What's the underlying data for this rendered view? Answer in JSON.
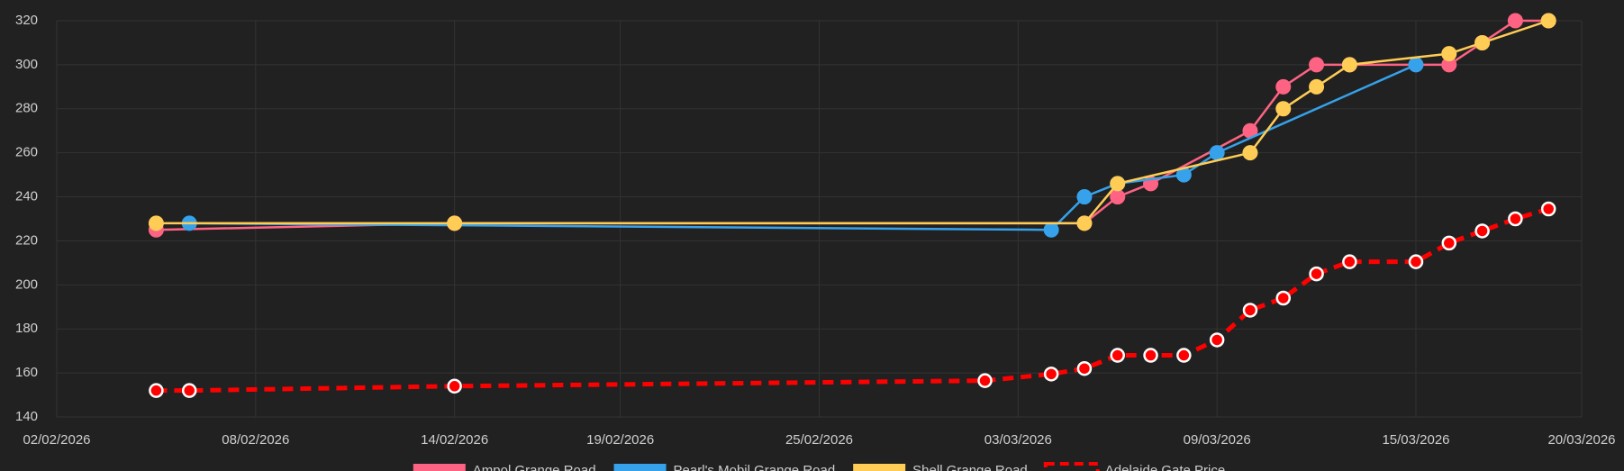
{
  "chart_data": {
    "type": "line",
    "xlim": [
      "2026-02-02",
      "2026-03-20"
    ],
    "xticks": [
      {
        "value": "2026-02-02",
        "label": "02/02/2026"
      },
      {
        "value": "2026-02-08",
        "label": "08/02/2026"
      },
      {
        "value": "2026-02-14",
        "label": "14/02/2026"
      },
      {
        "value": "2026-02-19",
        "label": "19/02/2026"
      },
      {
        "value": "2026-02-25",
        "label": "25/02/2026"
      },
      {
        "value": "2026-03-03",
        "label": "03/03/2026"
      },
      {
        "value": "2026-03-09",
        "label": "09/03/2026"
      },
      {
        "value": "2026-03-15",
        "label": "15/03/2026"
      },
      {
        "value": "2026-03-20",
        "label": "20/03/2026"
      }
    ],
    "ylim": [
      140,
      320
    ],
    "yticks": [
      140,
      160,
      180,
      200,
      220,
      240,
      260,
      280,
      300,
      320
    ],
    "grid": true,
    "legend": "bottom",
    "series": [
      {
        "name": "Ampol Grange Road",
        "color": "#ff6384",
        "style": "solid",
        "x": [
          "2026-02-05",
          "2026-02-14",
          "2026-03-05",
          "2026-03-06",
          "2026-03-07",
          "2026-03-10",
          "2026-03-11",
          "2026-03-12",
          "2026-03-13",
          "2026-03-16",
          "2026-03-17",
          "2026-03-18",
          "2026-03-19"
        ],
        "values": [
          225,
          228,
          228,
          240,
          246,
          270,
          290,
          300,
          300,
          300,
          310,
          320,
          320
        ]
      },
      {
        "name": "Pearl's Mobil Grange Road",
        "color": "#36a2eb",
        "style": "solid",
        "x": [
          "2026-02-06",
          "2026-03-04",
          "2026-03-05",
          "2026-03-06",
          "2026-03-08",
          "2026-03-09",
          "2026-03-15"
        ],
        "values": [
          228,
          225,
          240,
          246,
          250,
          260,
          300
        ]
      },
      {
        "name": "Shell Grange Road",
        "color": "#ffcd56",
        "style": "solid",
        "x": [
          "2026-02-05",
          "2026-02-14",
          "2026-03-05",
          "2026-03-06",
          "2026-03-10",
          "2026-03-11",
          "2026-03-12",
          "2026-03-13",
          "2026-03-16",
          "2026-03-17",
          "2026-03-19"
        ],
        "values": [
          228,
          228,
          228,
          246,
          260,
          280,
          290,
          300,
          305,
          310,
          320
        ]
      },
      {
        "name": "Adelaide Gate Price",
        "color": "#ff0000",
        "style": "dashed",
        "x": [
          "2026-02-05",
          "2026-02-06",
          "2026-02-14",
          "2026-03-02",
          "2026-03-04",
          "2026-03-05",
          "2026-03-06",
          "2026-03-07",
          "2026-03-08",
          "2026-03-09",
          "2026-03-10",
          "2026-03-11",
          "2026-03-12",
          "2026-03-13",
          "2026-03-15",
          "2026-03-16",
          "2026-03-17",
          "2026-03-18",
          "2026-03-19"
        ],
        "values": [
          152,
          152,
          154,
          156.5,
          159.5,
          162,
          168,
          168,
          168,
          175,
          188.5,
          194,
          205,
          210.5,
          210.5,
          219,
          224.5,
          230,
          234.5
        ]
      }
    ]
  }
}
